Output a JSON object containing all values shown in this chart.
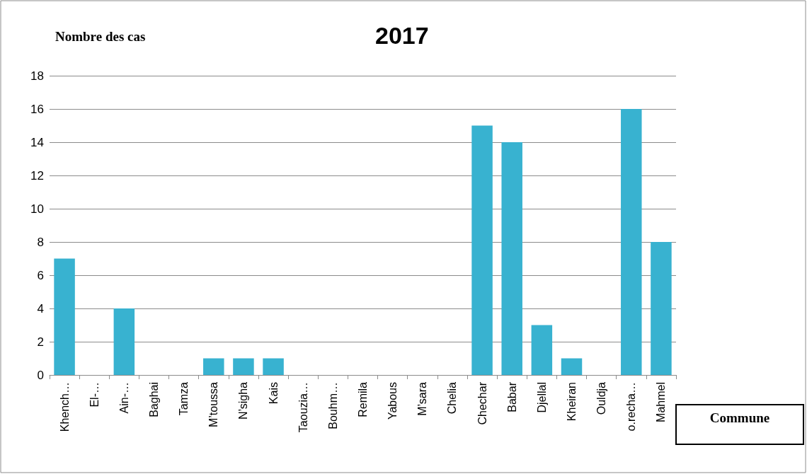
{
  "chart_data": {
    "type": "bar",
    "title": "2017",
    "xlabel": "Commune",
    "ylabel": "Nombre des cas",
    "categories": [
      "Khench…",
      "El-…",
      "Ain-…",
      "Baghai",
      "Tamza",
      "M’toussa",
      "N’sigha",
      "Kais",
      "Taouzia…",
      "Bouhm…",
      "Remila",
      "Yabous",
      "M’sara",
      "Chelia",
      "Chechar",
      "Babar",
      "Djellal",
      "Kheiran",
      "Ouldja",
      "o.recha…",
      "Mahmel"
    ],
    "values": [
      7,
      0,
      4,
      0,
      0,
      1,
      1,
      1,
      0,
      0,
      0,
      0,
      0,
      0,
      15,
      14,
      3,
      1,
      0,
      16,
      8
    ],
    "color": "#38b2d0",
    "ylim": [
      0,
      18
    ],
    "yticks": [
      0,
      2,
      4,
      6,
      8,
      10,
      12,
      14,
      16,
      18
    ],
    "grid": "y"
  }
}
